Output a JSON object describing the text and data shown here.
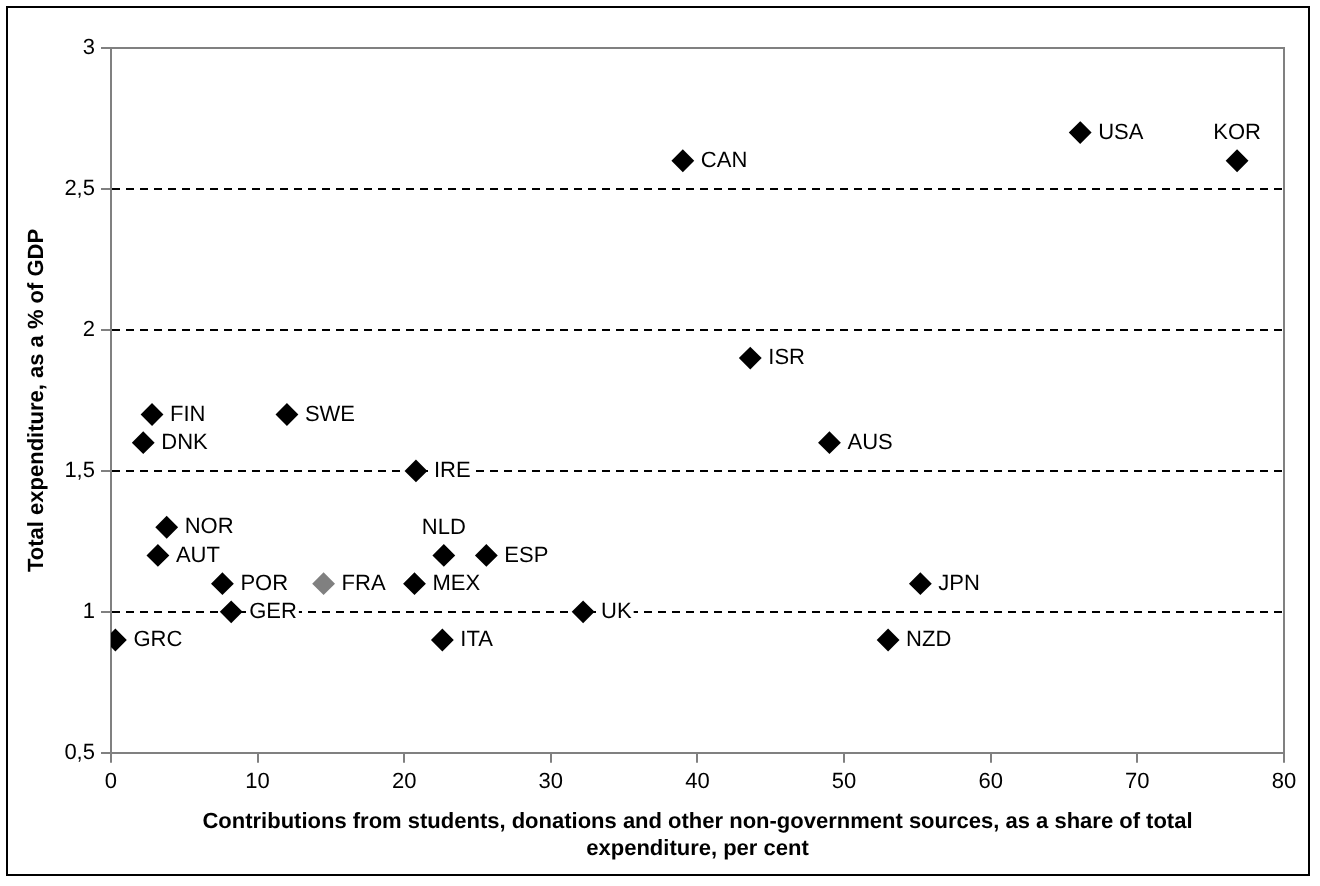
{
  "chart_data": {
    "type": "scatter",
    "xlabel": "Contributions from students, donations and other non-government sources, as a share of total expenditure, per cent",
    "ylabel": "Total expenditure, as a % of GDP",
    "x": [
      0.3,
      2.2,
      2.8,
      3.8,
      3.2,
      7.6,
      8.2,
      12,
      14.5,
      20.7,
      20.8,
      22.7,
      22.6,
      25.6,
      32.2,
      39,
      43.6,
      49,
      53,
      55.2,
      66.1,
      76.8
    ],
    "values": [
      0.9,
      1.6,
      1.7,
      1.3,
      1.2,
      1.1,
      1.0,
      1.7,
      1.1,
      1.1,
      1.5,
      1.2,
      0.9,
      1.2,
      1.0,
      2.6,
      1.9,
      1.6,
      0.9,
      1.1,
      2.7,
      2.6
    ],
    "colors": [
      "#000000",
      "#000000",
      "#000000",
      "#000000",
      "#000000",
      "#000000",
      "#000000",
      "#000000",
      "#808080",
      "#000000",
      "#000000",
      "#000000",
      "#000000",
      "#000000",
      "#000000",
      "#000000",
      "#000000",
      "#000000",
      "#000000",
      "#000000",
      "#000000",
      "#000000"
    ],
    "marker": "diamond",
    "grid": "y",
    "xlim": [
      0,
      80
    ],
    "xticks": [
      0,
      10,
      20,
      30,
      40,
      50,
      60,
      70,
      80
    ],
    "ylim": [
      0.5,
      3
    ],
    "yticks": [
      {
        "value": 0.5,
        "label": "0,5"
      },
      1,
      {
        "value": 1.5,
        "label": "1,5"
      },
      2,
      {
        "value": 2.5,
        "label": "2,5"
      },
      3
    ],
    "annotations": [
      {
        "text": "GRC",
        "x": 0.3,
        "y": 0.9
      },
      {
        "text": "DNK",
        "x": 2.2,
        "y": 1.6
      },
      {
        "text": "FIN",
        "x": 2.8,
        "y": 1.7
      },
      {
        "text": "NOR",
        "x": 3.8,
        "y": 1.3
      },
      {
        "text": "AUT",
        "x": 3.2,
        "y": 1.2
      },
      {
        "text": "POR",
        "x": 7.6,
        "y": 1.1
      },
      {
        "text": "GER",
        "x": 8.2,
        "y": 1.0
      },
      {
        "text": "SWE",
        "x": 12,
        "y": 1.7
      },
      {
        "text": "FRA",
        "x": 14.5,
        "y": 1.1
      },
      {
        "text": "MEX",
        "x": 20.7,
        "y": 1.1
      },
      {
        "text": "IRE",
        "x": 20.8,
        "y": 1.5
      },
      {
        "text": "NLD",
        "x": 22.7,
        "y": 1.2
      },
      {
        "text": "ITA",
        "x": 22.6,
        "y": 0.9
      },
      {
        "text": "ESP",
        "x": 25.6,
        "y": 1.2
      },
      {
        "text": "UK",
        "x": 32.2,
        "y": 1.0
      },
      {
        "text": "CAN",
        "x": 39,
        "y": 2.6
      },
      {
        "text": "ISR",
        "x": 43.6,
        "y": 1.9
      },
      {
        "text": "AUS",
        "x": 49,
        "y": 1.6
      },
      {
        "text": "NZD",
        "x": 53,
        "y": 0.9
      },
      {
        "text": "JPN",
        "x": 55.2,
        "y": 1.1
      },
      {
        "text": "USA",
        "x": 66.1,
        "y": 2.7
      },
      {
        "text": "KOR",
        "x": 76.8,
        "y": 2.6
      }
    ]
  }
}
